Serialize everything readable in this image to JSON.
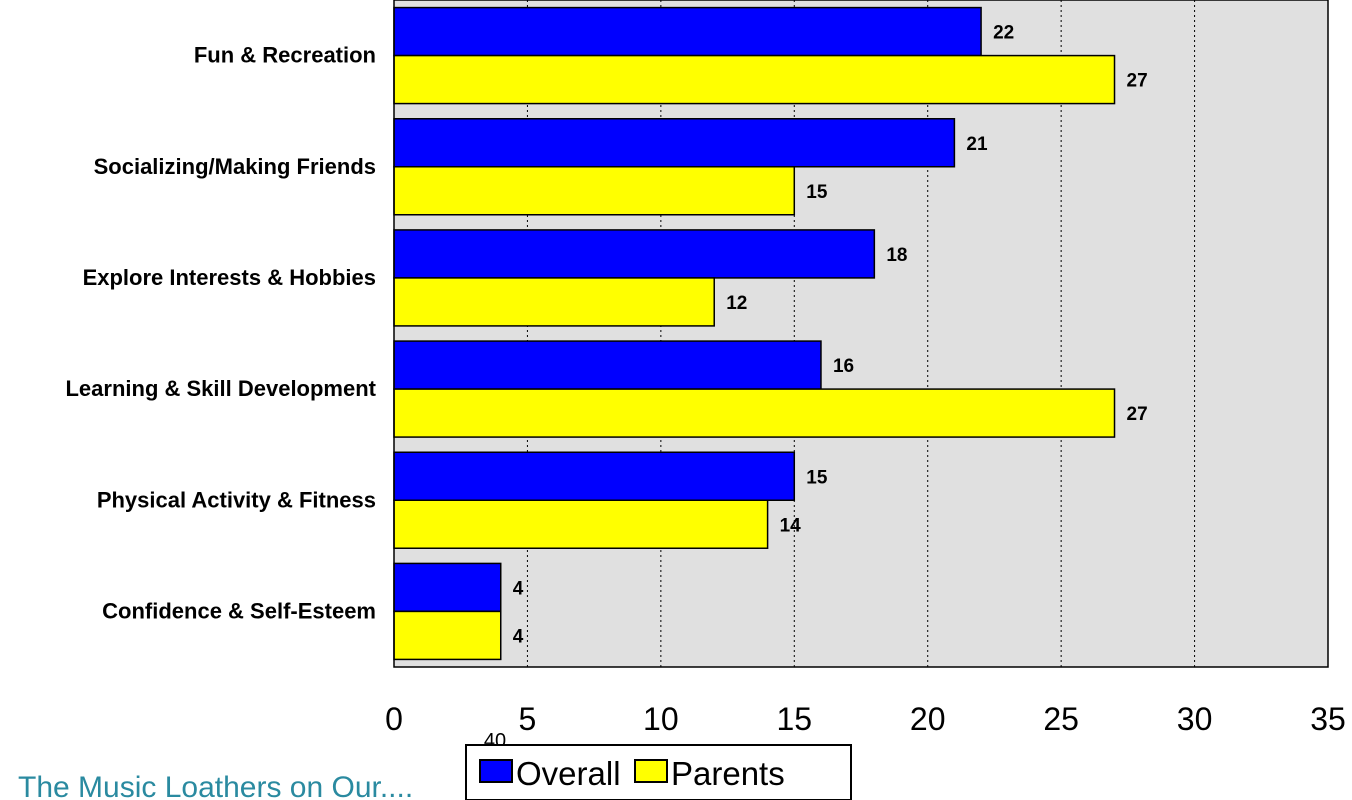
{
  "chart_data": {
    "type": "bar",
    "orientation": "horizontal",
    "categories": [
      "Fun & Recreation",
      "Socializing/Making Friends",
      "Explore Interests & Hobbies",
      "Learning & Skill Development",
      "Physical Activity & Fitness",
      "Confidence & Self-Esteem"
    ],
    "series": [
      {
        "name": "Overall",
        "values": [
          22,
          21,
          18,
          16,
          15,
          4
        ],
        "color": "#0000ff"
      },
      {
        "name": "Parents",
        "values": [
          27,
          15,
          12,
          27,
          14,
          4
        ],
        "color": "#ffff00"
      }
    ],
    "xlim": [
      0,
      35
    ],
    "xticks": [
      "0",
      "5",
      "10",
      "15",
      "20",
      "25",
      "30",
      "35"
    ],
    "grid": "vertical-dotted",
    "plot_background": "#e0e0e0",
    "legend_position": "bottom-center",
    "stray_label": "40"
  },
  "footer": {
    "text": "The Music Loathers on Our...."
  }
}
